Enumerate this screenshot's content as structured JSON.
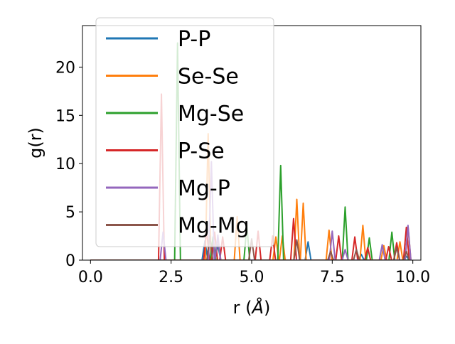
{
  "chart_data": {
    "type": "line",
    "xlabel_main": "r (",
    "xlabel_unit": "Å",
    "xlabel_close": ")",
    "ylabel": "g(r)",
    "xlim": [
      -0.25,
      10.25
    ],
    "ylim": [
      0,
      24.3
    ],
    "xticks": [
      0.0,
      2.5,
      5.0,
      7.5,
      10.0
    ],
    "xtick_labels": [
      "0.0",
      "2.5",
      "5.0",
      "7.5",
      "10.0"
    ],
    "yticks": [
      0,
      5,
      10,
      15,
      20
    ],
    "ytick_labels": [
      "0",
      "5",
      "10",
      "15",
      "20"
    ],
    "grid": false,
    "legend_position": "upper-left",
    "series": [
      {
        "name": "P-P",
        "color": "#1f77b4",
        "peaks": [
          [
            3.55,
            2.0
          ],
          [
            3.95,
            1.6
          ],
          [
            6.75,
            1.9
          ],
          [
            8.4,
            0.6
          ],
          [
            9.8,
            0.4
          ]
        ]
      },
      {
        "name": "Se-Se",
        "color": "#ff7f0e",
        "peaks": [
          [
            3.65,
            13.1
          ],
          [
            3.95,
            2.4
          ],
          [
            4.55,
            4.5
          ],
          [
            5.75,
            2.4
          ],
          [
            5.95,
            2.5
          ],
          [
            6.4,
            6.3
          ],
          [
            6.6,
            5.9
          ],
          [
            7.4,
            3.1
          ],
          [
            8.45,
            3.6
          ],
          [
            9.1,
            1.5
          ],
          [
            9.6,
            1.9
          ],
          [
            9.85,
            3.5
          ]
        ]
      },
      {
        "name": "Mg-Se",
        "color": "#2ca02c",
        "peaks": [
          [
            2.7,
            22.5
          ],
          [
            3.8,
            2.4
          ],
          [
            4.85,
            3.6
          ],
          [
            5.9,
            9.8
          ],
          [
            7.9,
            5.5
          ],
          [
            8.65,
            2.3
          ],
          [
            9.35,
            2.9
          ]
        ]
      },
      {
        "name": "P-Se",
        "color": "#d62728",
        "peaks": [
          [
            2.2,
            17.2
          ],
          [
            3.6,
            3.2
          ],
          [
            3.85,
            2.9
          ],
          [
            4.1,
            2.4
          ],
          [
            5.2,
            3.0
          ],
          [
            5.65,
            2.5
          ],
          [
            6.3,
            4.3
          ],
          [
            7.7,
            2.5
          ],
          [
            8.2,
            2.4
          ],
          [
            8.6,
            1.3
          ],
          [
            9.25,
            1.4
          ],
          [
            9.5,
            1.8
          ],
          [
            9.8,
            3.4
          ]
        ]
      },
      {
        "name": "Mg-P",
        "color": "#9467bd",
        "peaks": [
          [
            2.25,
            2.9
          ],
          [
            3.75,
            10.2
          ],
          [
            3.95,
            2.6
          ],
          [
            7.5,
            3.0
          ],
          [
            7.9,
            1.1
          ],
          [
            9.05,
            1.6
          ],
          [
            9.85,
            3.6
          ]
        ]
      },
      {
        "name": "Mg-Mg",
        "color": "#8c564b",
        "peaks": [
          [
            3.7,
            2.5
          ],
          [
            5.0,
            2.2
          ],
          [
            6.4,
            2.1
          ],
          [
            7.45,
            0.9
          ],
          [
            8.25,
            1.1
          ],
          [
            9.5,
            1.3
          ],
          [
            9.8,
            0.9
          ]
        ]
      }
    ]
  }
}
